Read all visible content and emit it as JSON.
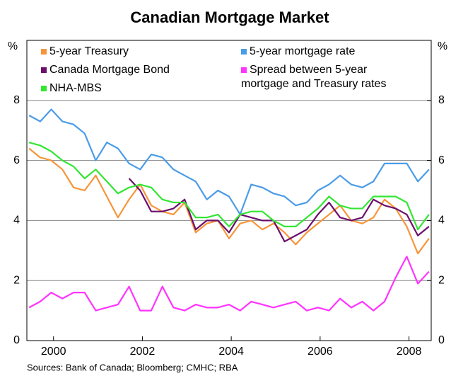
{
  "chart_data": {
    "type": "line",
    "title": "Canadian Mortgage Market",
    "y_label": "%",
    "y2_label": "%",
    "source": "Sources: Bank of Canada; Bloomberg; CMHC; RBA",
    "x": [
      1999.45,
      1999.7,
      1999.95,
      2000.2,
      2000.45,
      2000.7,
      2000.95,
      2001.2,
      2001.45,
      2001.7,
      2001.95,
      2002.2,
      2002.45,
      2002.7,
      2002.95,
      2003.2,
      2003.45,
      2003.7,
      2003.95,
      2004.2,
      2004.45,
      2004.7,
      2004.95,
      2005.2,
      2005.45,
      2005.7,
      2005.95,
      2006.2,
      2006.45,
      2006.7,
      2006.95,
      2007.2,
      2007.45,
      2007.7,
      2007.95,
      2008.2,
      2008.45
    ],
    "xlim": [
      1999.4,
      2008.5
    ],
    "xticks": [
      2000,
      2002,
      2004,
      2006,
      2008
    ],
    "ylim": [
      0,
      10
    ],
    "yticks": [
      0,
      2,
      4,
      6,
      8
    ],
    "y2lim": [
      0,
      10
    ],
    "y2ticks": [
      0,
      2,
      4,
      6,
      8
    ],
    "grid": true,
    "series": [
      {
        "name": "5-year Treasury",
        "color": "#f7953a",
        "values": [
          6.4,
          6.1,
          6.0,
          5.7,
          5.1,
          5.0,
          5.5,
          4.8,
          4.1,
          4.7,
          5.2,
          4.5,
          4.3,
          4.2,
          4.6,
          3.6,
          3.9,
          4.0,
          3.4,
          3.9,
          4.0,
          3.7,
          3.9,
          3.6,
          3.2,
          3.6,
          3.9,
          4.2,
          4.5,
          4.0,
          3.9,
          4.1,
          4.7,
          4.4,
          3.8,
          2.9,
          3.4
        ]
      },
      {
        "name": "5-year mortgage rate",
        "color": "#4a9ce8",
        "values": [
          7.5,
          7.3,
          7.7,
          7.3,
          7.2,
          6.9,
          6.0,
          6.6,
          6.4,
          5.9,
          5.7,
          6.2,
          6.1,
          5.7,
          5.5,
          5.3,
          4.7,
          5.0,
          4.8,
          4.2,
          5.2,
          5.1,
          4.9,
          4.8,
          4.5,
          4.6,
          5.0,
          5.2,
          5.5,
          5.2,
          5.1,
          5.3,
          5.9,
          5.9,
          5.9,
          5.3,
          5.7
        ]
      },
      {
        "name": "Canada Mortgage Bond",
        "color": "#6b0f6b",
        "values": [
          null,
          null,
          null,
          null,
          null,
          null,
          null,
          null,
          null,
          5.4,
          5.0,
          4.3,
          4.3,
          4.4,
          4.7,
          3.7,
          4.0,
          4.0,
          3.6,
          4.2,
          4.1,
          4.0,
          4.0,
          3.3,
          3.5,
          3.7,
          4.2,
          4.6,
          4.1,
          4.0,
          4.1,
          4.7,
          4.5,
          4.4,
          4.2,
          3.5,
          3.8
        ]
      },
      {
        "name": "Spread between 5-year\nmortgage and Treasury rates",
        "color": "#ff33ff",
        "values": [
          1.1,
          1.3,
          1.6,
          1.4,
          1.6,
          1.6,
          1.0,
          1.1,
          1.2,
          1.8,
          1.0,
          1.0,
          1.8,
          1.1,
          1.0,
          1.2,
          1.1,
          1.1,
          1.2,
          1.0,
          1.3,
          1.2,
          1.1,
          1.2,
          1.3,
          1.0,
          1.1,
          1.0,
          1.4,
          1.1,
          1.3,
          1.0,
          1.3,
          2.1,
          2.8,
          1.9,
          2.3
        ]
      },
      {
        "name": "NHA-MBS",
        "color": "#33e633",
        "values": [
          6.6,
          6.5,
          6.3,
          6.0,
          5.8,
          5.4,
          5.7,
          5.3,
          4.9,
          5.1,
          5.2,
          5.1,
          4.7,
          4.6,
          4.6,
          4.1,
          4.1,
          4.2,
          3.8,
          4.2,
          4.3,
          4.3,
          4.0,
          3.8,
          3.8,
          4.1,
          4.4,
          4.8,
          4.5,
          4.4,
          4.4,
          4.8,
          4.8,
          4.8,
          4.6,
          3.7,
          4.2
        ]
      }
    ]
  }
}
